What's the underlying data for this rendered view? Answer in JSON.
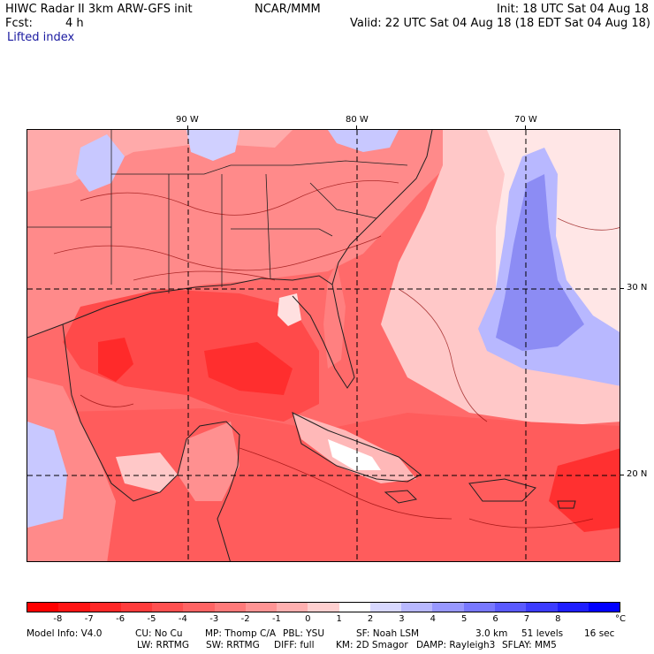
{
  "header": {
    "title": "HIWC Radar II 3km ARW-GFS init",
    "org": "NCAR/MMM",
    "init": "Init: 18 UTC Sat 04 Aug 18",
    "fcst_label": "Fcst:",
    "fcst_value": "4 h",
    "valid": "Valid: 22 UTC Sat 04 Aug 18 (18 EDT Sat 04 Aug 18)",
    "field": "Lifted index"
  },
  "axes": {
    "lon_labels": [
      "90 W",
      "80 W",
      "70 W"
    ],
    "lat_labels": [
      "30 N",
      "20 N"
    ]
  },
  "colorbar": {
    "labels": [
      "-8",
      "-7",
      "-6",
      "-5",
      "-4",
      "-3",
      "-2",
      "-1",
      "0",
      "1",
      "2",
      "3",
      "4",
      "5",
      "6",
      "7",
      "8"
    ],
    "unit": "°C",
    "colors": [
      "#ff0000",
      "#ff1414",
      "#ff2828",
      "#ff3c3c",
      "#ff5050",
      "#ff6464",
      "#ff7a7a",
      "#ff9494",
      "#ffb0b0",
      "#ffd0d0",
      "#ffffff",
      "#d8d8ff",
      "#b8b8ff",
      "#9898ff",
      "#7878ff",
      "#5a5aff",
      "#3c3cff",
      "#1e1eff",
      "#0000ff"
    ]
  },
  "footer": {
    "line1": [
      "Model Info: V4.0",
      "CU: No Cu",
      "MP: Thomp C/A",
      "PBL: YSU",
      "SF: Noah LSM",
      "3.0 km",
      "51 levels",
      "16 sec"
    ],
    "line2": [
      "LW: RRTMG",
      "SW: RRTMG",
      "DIFF: full",
      "KM: 2D Smagor",
      "DAMP: Rayleigh3",
      "SFLAY: MM5"
    ]
  }
}
